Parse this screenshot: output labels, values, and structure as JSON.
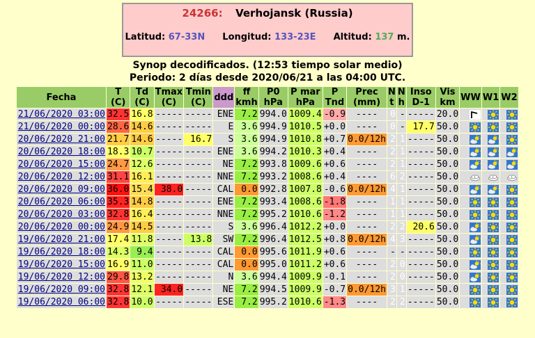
{
  "station": {
    "id": "24266:",
    "name": "Verhojansk (Russia)",
    "lat_label": "Latitud:",
    "lat": "67-33N",
    "lon_label": "Longitud:",
    "lon": "133-23E",
    "alt_label": "Altitud:",
    "alt": "137",
    "alt_unit": "m."
  },
  "heading_line1": "Synop decodificados. (12:53 tiempo solar medio)",
  "heading_line2": "Periodo: 2 días desde 2020/06/21 a las 04:00 UTC.",
  "columns": {
    "fecha": "Fecha",
    "t": [
      "T",
      "(C)"
    ],
    "td": [
      "Td",
      "(C)"
    ],
    "tmax": [
      "Tmax",
      "(C)"
    ],
    "tmin": [
      "Tmin",
      "(C)"
    ],
    "ddd": "ddd",
    "ff": [
      "ff",
      "kmh"
    ],
    "p0": [
      "P0",
      "hPa"
    ],
    "pmar": [
      "P mar",
      "hPa"
    ],
    "ptnd": [
      "P",
      "Tnd"
    ],
    "prec": [
      "Prec",
      "(mm)"
    ],
    "nt": [
      "N",
      "t"
    ],
    "nh": [
      "N",
      "h"
    ],
    "inso": [
      "Inso",
      "D-1"
    ],
    "vis": [
      "Vis",
      "km"
    ],
    "ww": "WW",
    "w1": "W1",
    "w2": "W2"
  },
  "colors": {
    "header_green": "#99cc66",
    "ddd_header": "#cc99cc",
    "page_bg": "#ffffcc",
    "vis_bg": "#6699ff",
    "n_bg": "#6688cc"
  },
  "rows": [
    {
      "fecha": "21/06/2020 03:00",
      "t": "32.5",
      "t_c": "#ff3333",
      "td": "16.8",
      "td_c": "#ffff66",
      "tmax": "-----",
      "tmin": "-----",
      "ddd": "ENE",
      "ff": "7.2",
      "ff_c": "#99ee44",
      "p0": "994.0",
      "pmar": "1009.4",
      "pmar_c": "#ccff66",
      "ptnd": "-0.9",
      "ptnd_c": "#ffaaaa",
      "prec": "----",
      "nt": "0",
      "nh": "-",
      "nh_gray": true,
      "inso": "-----",
      "inso_c": "",
      "vis": "20.0",
      "ww": "fog-icon",
      "w1": "sun-icon",
      "w2": "sun-icon"
    },
    {
      "fecha": "21/06/2020 00:00",
      "t": "28.6",
      "t_c": "#ff6644",
      "td": "14.6",
      "td_c": "#ffcc44",
      "tmax": "-----",
      "tmin": "-----",
      "ddd": "E",
      "ff": "3.6",
      "ff_c": "#ccff99",
      "p0": "994.9",
      "pmar": "1010.5",
      "pmar_c": "#ccff66",
      "ptnd": "+0.0",
      "ptnd_c": "",
      "prec": "----",
      "nt": "0",
      "nh": "-",
      "nh_gray": true,
      "inso": "17.7",
      "inso_c": "#ffff66",
      "vis": "50.0",
      "ww": "sun-icon",
      "w1": "sun-icon",
      "w2": "sun-icon"
    },
    {
      "fecha": "20/06/2020 21:00",
      "t": "21.7",
      "t_c": "#ffcc44",
      "td": "14.6",
      "td_c": "#ffcc44",
      "tmax": "-----",
      "tmin": "16.7",
      "tmin_c": "#ffff66",
      "ddd": "S",
      "ff": "3.6",
      "ff_c": "#ccff99",
      "p0": "994.9",
      "pmar": "1010.8",
      "pmar_c": "#ccff66",
      "ptnd": "+0.7",
      "ptnd_c": "",
      "prec": "0.0/12h",
      "prec_c": "#ff9933",
      "nt": "2",
      "nh": "1",
      "inso": "-----",
      "inso_c": "",
      "vis": "50.0",
      "ww": "partly-cloudy-icon",
      "w1": "partly-cloudy-icon",
      "w2": "sun-icon"
    },
    {
      "fecha": "20/06/2020 18:00",
      "t": "18.3",
      "t_c": "#ffff66",
      "td": "10.7",
      "td_c": "#ccff66",
      "tmax": "-----",
      "tmin": "-----",
      "ddd": "ENE",
      "ff": "3.6",
      "ff_c": "#ccff99",
      "p0": "994.2",
      "pmar": "1010.3",
      "pmar_c": "#ccff66",
      "ptnd": "+0.4",
      "ptnd_c": "",
      "prec": "----",
      "nt": "2",
      "nh": "1",
      "inso": "-----",
      "inso_c": "",
      "vis": "50.0",
      "ww": "partly-cloudy-icon",
      "w1": "partly-cloudy-icon",
      "w2": "partly-cloudy-icon"
    },
    {
      "fecha": "20/06/2020 15:00",
      "t": "24.7",
      "t_c": "#ff9944",
      "td": "12.6",
      "td_c": "#ddff66",
      "tmax": "-----",
      "tmin": "-----",
      "ddd": "NE",
      "ff": "7.2",
      "ff_c": "#99ee44",
      "p0": "993.8",
      "pmar": "1009.6",
      "pmar_c": "#ccff66",
      "ptnd": "+0.6",
      "ptnd_c": "",
      "prec": "----",
      "nt": "2",
      "nh": "1",
      "inso": "-----",
      "inso_c": "",
      "vis": "50.0",
      "ww": "partly-cloudy-icon",
      "w1": "partly-cloudy-icon",
      "w2": "partly-cloudy-icon"
    },
    {
      "fecha": "20/06/2020 12:00",
      "t": "31.1",
      "t_c": "#ff4444",
      "td": "16.1",
      "td_c": "#ffee55",
      "tmax": "-----",
      "tmin": "-----",
      "ddd": "NNE",
      "ff": "7.2",
      "ff_c": "#99ee44",
      "p0": "993.2",
      "pmar": "1008.6",
      "pmar_c": "#ccff66",
      "ptnd": "+0.4",
      "ptnd_c": "",
      "prec": "----",
      "nt": "6",
      "nh": "2",
      "inso": "-----",
      "inso_c": "",
      "vis": "50.0",
      "ww": "cloud-icon",
      "w1": "cloud-icon",
      "w2": "cloud-icon"
    },
    {
      "fecha": "20/06/2020 09:00",
      "t": "36.0",
      "t_c": "#ff1111",
      "td": "15.4",
      "td_c": "#ffdd55",
      "tmax": "38.0",
      "tmax_c": "#ff2222",
      "tmin": "-----",
      "ddd": "CAL",
      "ff": "0.0",
      "ff_c": "#ff9933",
      "p0": "992.8",
      "pmar": "1007.8",
      "pmar_c": "#ccff66",
      "ptnd": "-0.6",
      "ptnd_c": "",
      "prec": "0.0/12h",
      "prec_c": "#ff9933",
      "nt": "4",
      "nh": "1",
      "inso": "-----",
      "inso_c": "",
      "vis": "50.0",
      "ww": "partly-cloudy-icon",
      "w1": "partly-cloudy-icon",
      "w2": "sun-icon"
    },
    {
      "fecha": "20/06/2020 06:00",
      "t": "35.3",
      "t_c": "#ff2222",
      "td": "14.8",
      "td_c": "#ffcc44",
      "tmax": "-----",
      "tmin": "-----",
      "ddd": "ENE",
      "ff": "7.2",
      "ff_c": "#99ee44",
      "p0": "993.4",
      "pmar": "1008.6",
      "pmar_c": "#ccff66",
      "ptnd": "-1.8",
      "ptnd_c": "#ff7777",
      "prec": "----",
      "nt": "1",
      "nh": "1",
      "inso": "-----",
      "inso_c": "",
      "vis": "50.0",
      "ww": "sun-icon",
      "w1": "sun-icon",
      "w2": "sun-icon"
    },
    {
      "fecha": "20/06/2020 03:00",
      "t": "32.8",
      "t_c": "#ff3333",
      "td": "16.4",
      "td_c": "#ffee55",
      "tmax": "-----",
      "tmin": "-----",
      "ddd": "NNE",
      "ff": "7.2",
      "ff_c": "#99ee44",
      "p0": "995.2",
      "pmar": "1010.6",
      "pmar_c": "#ccff66",
      "ptnd": "-1.2",
      "ptnd_c": "#ff8888",
      "prec": "----",
      "nt": "1",
      "nh": "1",
      "inso": "-----",
      "inso_c": "",
      "vis": "50.0",
      "ww": "sun-icon",
      "w1": "sun-icon",
      "w2": "sun-icon"
    },
    {
      "fecha": "20/06/2020 00:00",
      "t": "24.9",
      "t_c": "#ff9944",
      "td": "14.5",
      "td_c": "#ffcc44",
      "tmax": "-----",
      "tmin": "-----",
      "ddd": "S",
      "ff": "3.6",
      "ff_c": "#ccff99",
      "p0": "996.4",
      "pmar": "1012.2",
      "pmar_c": "#ccff66",
      "ptnd": "+0.0",
      "ptnd_c": "",
      "prec": "----",
      "nt": "2",
      "nh": "2",
      "inso": "20.6",
      "inso_c": "#ffff66",
      "vis": "50.0",
      "ww": "partly-cloudy-icon",
      "w1": "sun-icon",
      "w2": "sun-icon"
    },
    {
      "fecha": "19/06/2020 21:00",
      "t": "17.4",
      "t_c": "#ffff66",
      "td": "11.8",
      "td_c": "#ddff66",
      "tmax": "-----",
      "tmin": "13.8",
      "tmin_c": "#ccff66",
      "ddd": "SW",
      "ff": "7.2",
      "ff_c": "#99ee44",
      "p0": "996.4",
      "pmar": "1012.5",
      "pmar_c": "#ccff66",
      "ptnd": "+0.8",
      "ptnd_c": "",
      "prec": "0.0/12h",
      "prec_c": "#ff9933",
      "nt": "4",
      "nh": "3",
      "inso": "-----",
      "inso_c": "",
      "vis": "50.0",
      "ww": "partly-cloudy-icon",
      "w1": "sun-icon",
      "w2": "sun-icon"
    },
    {
      "fecha": "19/06/2020 18:00",
      "t": "14.3",
      "t_c": "#ddff66",
      "td": "9.4",
      "td_c": "#99ee55",
      "tmax": "-----",
      "tmin": "-----",
      "ddd": "CAL",
      "ff": "0.0",
      "ff_c": "#ff9933",
      "p0": "995.6",
      "pmar": "1011.9",
      "pmar_c": "#ccff66",
      "ptnd": "+0.6",
      "ptnd_c": "",
      "prec": "----",
      "nt": "-",
      "nh": "-",
      "nh_gray": true,
      "nt_gray": true,
      "inso": "-----",
      "inso_c": "",
      "vis": "50.0",
      "ww": "sun-icon",
      "w1": "sun-icon",
      "w2": "sun-icon"
    },
    {
      "fecha": "19/06/2020 15:00",
      "t": "16.9",
      "t_c": "#ffff66",
      "td": "11.0",
      "td_c": "#ccff66",
      "tmax": "-----",
      "tmin": "-----",
      "ddd": "CAL",
      "ff": "0.0",
      "ff_c": "#ff9933",
      "p0": "995.0",
      "pmar": "1011.2",
      "pmar_c": "#ccff66",
      "ptnd": "+0.6",
      "ptnd_c": "",
      "prec": "----",
      "nt": "2",
      "nh": "0",
      "inso": "-----",
      "inso_c": "",
      "vis": "50.0",
      "ww": "partly-cloudy-icon",
      "w1": "sun-icon",
      "w2": "sun-icon"
    },
    {
      "fecha": "19/06/2020 12:00",
      "t": "29.8",
      "t_c": "#ff5544",
      "td": "13.2",
      "td_c": "#eeff66",
      "tmax": "-----",
      "tmin": "-----",
      "ddd": "N",
      "ff": "3.6",
      "ff_c": "#ccff99",
      "p0": "994.4",
      "pmar": "1009.9",
      "pmar_c": "#ccff66",
      "ptnd": "-0.1",
      "ptnd_c": "",
      "prec": "----",
      "nt": "2",
      "nh": "0",
      "inso": "-----",
      "inso_c": "",
      "vis": "50.0",
      "ww": "partly-cloudy-icon",
      "w1": "sun-icon",
      "w2": "sun-icon"
    },
    {
      "fecha": "19/06/2020 09:00",
      "t": "32.8",
      "t_c": "#ff3333",
      "td": "12.1",
      "td_c": "#ddff66",
      "tmax": "34.0",
      "tmax_c": "#ff2222",
      "tmin": "-----",
      "ddd": "NE",
      "ff": "7.2",
      "ff_c": "#99ee44",
      "p0": "994.5",
      "pmar": "1009.9",
      "pmar_c": "#ccff66",
      "ptnd": "-0.7",
      "ptnd_c": "",
      "prec": "0.0/12h",
      "prec_c": "#ff9933",
      "nt": "3",
      "nh": "1",
      "inso": "-----",
      "inso_c": "",
      "vis": "50.0",
      "ww": "sun-icon",
      "w1": "sun-icon",
      "w2": "sun-icon"
    },
    {
      "fecha": "19/06/2020 06:00",
      "t": "32.8",
      "t_c": "#ff3333",
      "td": "10.0",
      "td_c": "#ccff66",
      "tmax": "-----",
      "tmin": "-----",
      "ddd": "ESE",
      "ff": "7.2",
      "ff_c": "#99ee44",
      "p0": "995.2",
      "pmar": "1010.6",
      "pmar_c": "#ccff66",
      "ptnd": "-1.3",
      "ptnd_c": "#ff8888",
      "prec": "----",
      "nt": "2",
      "nh": "2",
      "inso": "-----",
      "inso_c": "",
      "vis": "50.0",
      "ww": "sun-icon",
      "w1": "sun-icon",
      "w2": "sun-icon"
    }
  ]
}
